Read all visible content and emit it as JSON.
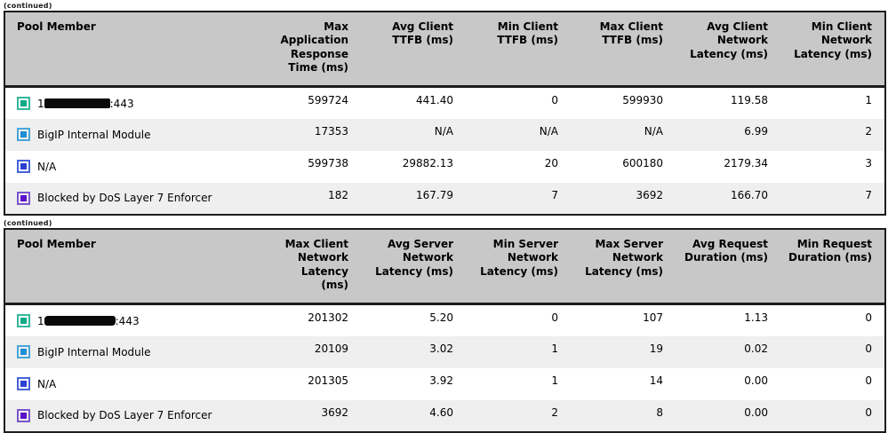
{
  "page": {
    "continued_label": "(continued)"
  },
  "legend_colors": {
    "green": {
      "border": "#35b79c",
      "fill": "#0fa98a"
    },
    "blue": {
      "border": "#49a5da",
      "fill": "#1d8fd4"
    },
    "royal": {
      "border": "#4663d9",
      "fill": "#2b3fd1"
    },
    "purple": {
      "border": "#7a55cd",
      "fill": "#5a10c8"
    }
  },
  "tables": [
    {
      "columns": [
        "Pool Member",
        "Max Application Response Time (ms)",
        "Avg Client TTFB (ms)",
        "Min Client TTFB (ms)",
        "Max Client TTFB (ms)",
        "Avg Client Network Latency (ms)",
        "Min Client Network Latency (ms)"
      ],
      "rows": [
        {
          "swatch": "green",
          "label_prefix": "1",
          "label_suffix": ":443",
          "redacted": true,
          "values": [
            "599724",
            "441.40",
            "0",
            "599930",
            "119.58",
            "1"
          ]
        },
        {
          "swatch": "blue",
          "label": "BigIP Internal Module",
          "values": [
            "17353",
            "N/A",
            "N/A",
            "N/A",
            "6.99",
            "2"
          ]
        },
        {
          "swatch": "royal",
          "label": "N/A",
          "values": [
            "599738",
            "29882.13",
            "20",
            "600180",
            "2179.34",
            "3"
          ]
        },
        {
          "swatch": "purple",
          "label": "Blocked by DoS Layer 7 Enforcer",
          "values": [
            "182",
            "167.79",
            "7",
            "3692",
            "166.70",
            "7"
          ]
        }
      ]
    },
    {
      "columns": [
        "Pool Member",
        "Max Client Network Latency (ms)",
        "Avg Server Network Latency (ms)",
        "Min Server Network Latency (ms)",
        "Max Server Network Latency (ms)",
        "Avg Request Duration (ms)",
        "Min Request Duration (ms)"
      ],
      "rows": [
        {
          "swatch": "green",
          "label_prefix": "1",
          "label_suffix": ":443",
          "redacted": true,
          "values": [
            "201302",
            "5.20",
            "0",
            "107",
            "1.13",
            "0"
          ]
        },
        {
          "swatch": "blue",
          "label": "BigIP Internal Module",
          "values": [
            "20109",
            "3.02",
            "1",
            "19",
            "0.02",
            "0"
          ]
        },
        {
          "swatch": "royal",
          "label": "N/A",
          "values": [
            "201305",
            "3.92",
            "1",
            "14",
            "0.00",
            "0"
          ]
        },
        {
          "swatch": "purple",
          "label": "Blocked by DoS Layer 7 Enforcer",
          "values": [
            "3692",
            "4.60",
            "2",
            "8",
            "0.00",
            "0"
          ]
        }
      ]
    }
  ]
}
